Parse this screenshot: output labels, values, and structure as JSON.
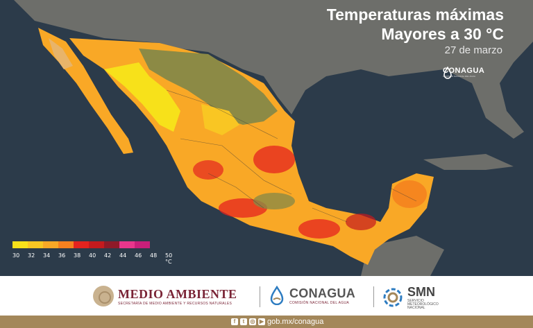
{
  "title_line1": "Temperaturas máximas",
  "title_line2": "Mayores a 30 °C",
  "date": "27 de marzo",
  "map_logo": {
    "name": "CONAGUA",
    "subtitle": "COMISIÓN NACIONAL DEL AGUA"
  },
  "legend": {
    "colors": [
      "#f7e11a",
      "#f9c623",
      "#f9a826",
      "#f5801f",
      "#e4231f",
      "#c41a1e",
      "#8e1a28",
      "#e8368c",
      "#c81f7a"
    ],
    "ticks": [
      "30",
      "32",
      "34",
      "36",
      "38",
      "40",
      "42",
      "44",
      "46",
      "48",
      "50 °C"
    ]
  },
  "colors": {
    "ocean": "#2c3b4a",
    "land_other": "#6d6e6a",
    "footer_band": "#a3875a",
    "medio_ambiente": "#7a2436"
  },
  "footer": {
    "medio_ambiente": {
      "title": "MEDIO AMBIENTE",
      "subtitle": "SECRETARÍA DE MEDIO AMBIENTE Y RECURSOS NATURALES"
    },
    "conagua": {
      "title": "CONAGUA",
      "subtitle": "COMISIÓN NACIONAL DEL AGUA"
    },
    "smn": {
      "title": "SMN",
      "subtitle_l1": "SERVICIO",
      "subtitle_l2": "METEOROLÓGICO",
      "subtitle_l3": "NACIONAL"
    }
  },
  "bottom_bar": {
    "social_icons": [
      "facebook-icon",
      "twitter-icon",
      "instagram-icon",
      "youtube-icon"
    ],
    "url": "gob.mx/conagua"
  }
}
